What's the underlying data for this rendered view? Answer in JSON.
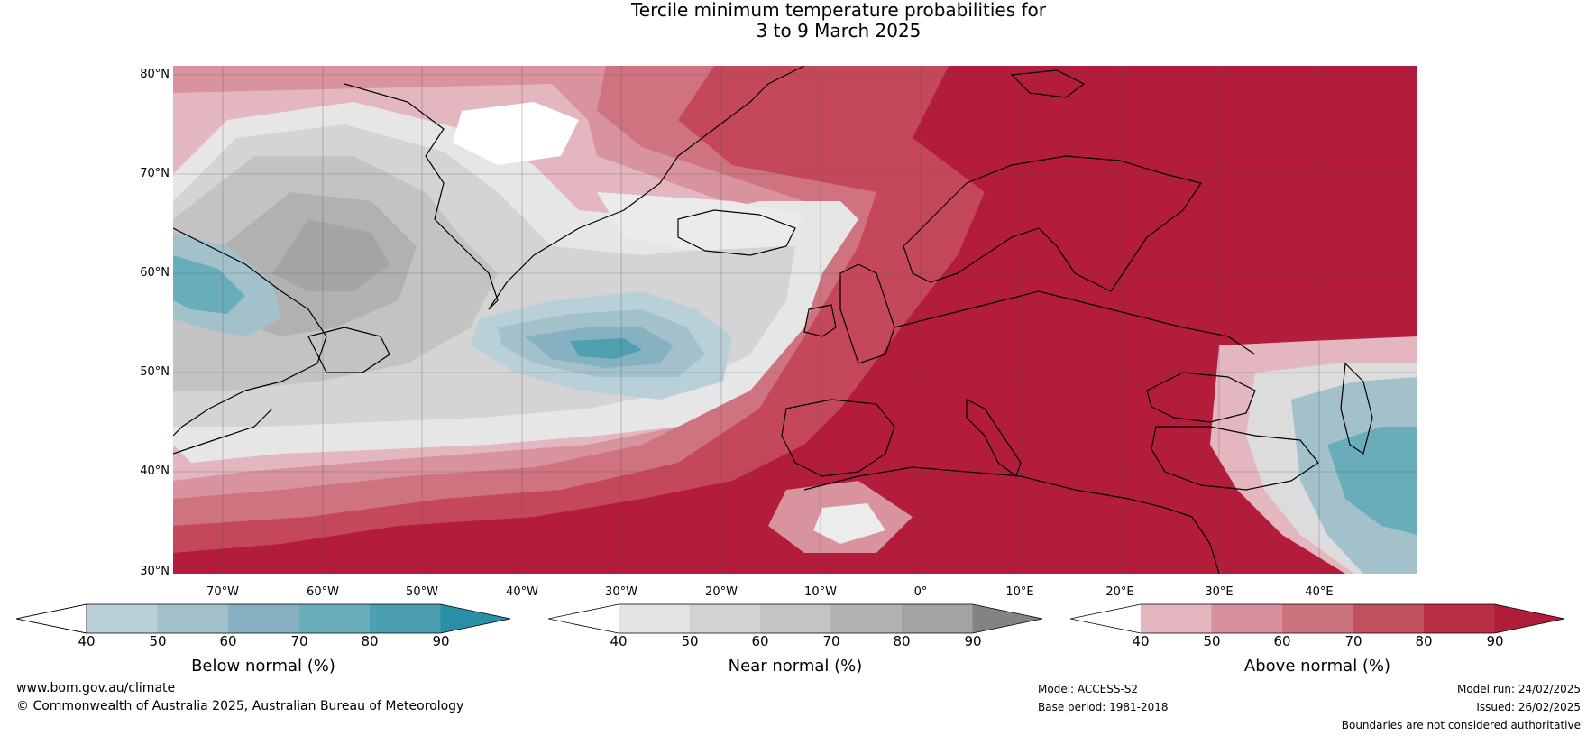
{
  "title_line1": "Tercile minimum temperature probabilities for",
  "title_line2": "3 to 9 March 2025",
  "map": {
    "lat_labels": [
      "80°N",
      "70°N",
      "60°N",
      "50°N",
      "40°N",
      "30°N"
    ],
    "lon_labels": [
      "70°W",
      "60°W",
      "50°W",
      "40°W",
      "30°W",
      "20°W",
      "10°W",
      "0°",
      "10°E",
      "20°E",
      "30°E",
      "40°E"
    ],
    "lat_range": [
      30,
      80
    ],
    "lon_range": [
      -80,
      45
    ],
    "projection": "equirectangular"
  },
  "colorbars": [
    {
      "title": "Below normal (%)",
      "ticks": [
        "40",
        "50",
        "60",
        "70",
        "80",
        "90"
      ],
      "colors": [
        "#ffffff",
        "#b9cfd7",
        "#a1c0c9",
        "#86b0c1",
        "#69adb9",
        "#4b9fb0",
        "#2a8fa6"
      ]
    },
    {
      "title": "Near normal (%)",
      "ticks": [
        "40",
        "50",
        "60",
        "70",
        "80",
        "90"
      ],
      "colors": [
        "#ffffff",
        "#e4e4e4",
        "#d2d2d2",
        "#c4c4c4",
        "#b2b2b2",
        "#a3a3a3",
        "#838383"
      ]
    },
    {
      "title": "Above normal (%)",
      "ticks": [
        "40",
        "50",
        "60",
        "70",
        "80",
        "90"
      ],
      "colors": [
        "#ffffff",
        "#e2b5bf",
        "#d6909c",
        "#cc7380",
        "#c1505e",
        "#b82e44",
        "#b01d38"
      ]
    }
  ],
  "footer": {
    "website": "www.bom.gov.au/climate",
    "copyright": "© Commonwealth of Australia 2025, Australian Bureau of Meteorology",
    "model": "Model: ACCESS-S2",
    "base_period": "Base period: 1981-2018",
    "model_run": "Model run: 24/02/2025",
    "issued": "Issued: 26/02/2025",
    "disclaimer": "Boundaries are not considered authoritative"
  }
}
